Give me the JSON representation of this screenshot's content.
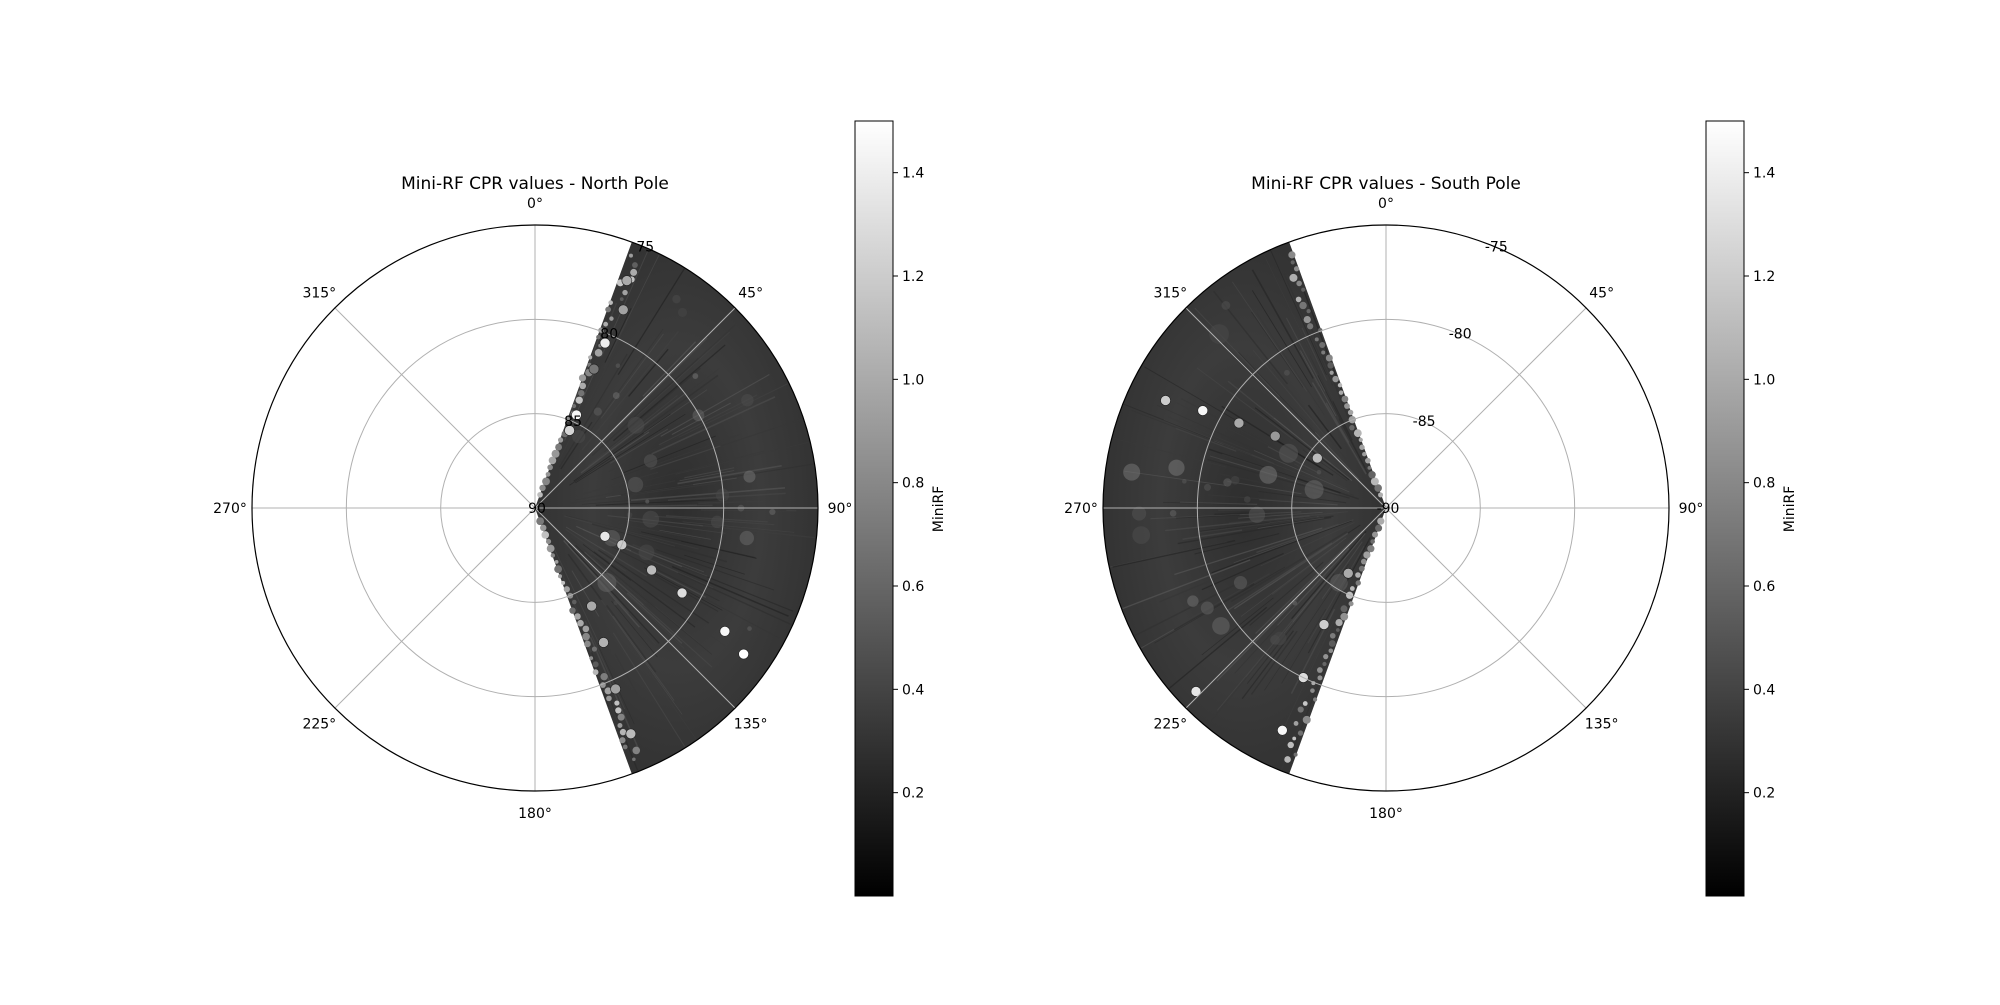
{
  "chart_data": [
    {
      "type": "polar-scatter",
      "title": "Mini-RF CPR values - North Pole",
      "theta_tick_labels": [
        "0°",
        "45°",
        "90°",
        "135°",
        "180°",
        "225°",
        "270°",
        "315°"
      ],
      "radial_tick_labels": [
        "75",
        "80",
        "85",
        "90"
      ],
      "r_range": [
        90,
        75
      ],
      "theta_zero": "top",
      "theta_direction": "clockwise",
      "coverage_longitude_deg": [
        20,
        160
      ],
      "colormap": "gray",
      "colorbar": {
        "label": "MiniRF",
        "range": [
          0.0,
          1.5
        ],
        "tick_labels": [
          "0.2",
          "0.4",
          "0.6",
          "0.8",
          "1.0",
          "1.2",
          "1.4"
        ]
      },
      "grid": true,
      "highlights": [
        {
          "lon": 22,
          "lat": 77.0,
          "cpr": 1.0
        },
        {
          "lon": 24,
          "lat": 78.5,
          "cpr": 0.95
        },
        {
          "lon": 23,
          "lat": 80.5,
          "cpr": 1.4
        },
        {
          "lon": 23,
          "lat": 82.0,
          "cpr": 0.7
        },
        {
          "lon": 24,
          "lat": 84.6,
          "cpr": 1.45
        },
        {
          "lon": 24,
          "lat": 85.5,
          "cpr": 1.25
        },
        {
          "lon": 112,
          "lat": 86.0,
          "cpr": 1.35
        },
        {
          "lon": 113,
          "lat": 85.0,
          "cpr": 1.2
        },
        {
          "lon": 118,
          "lat": 83.0,
          "cpr": 1.1
        },
        {
          "lon": 120,
          "lat": 81.0,
          "cpr": 1.3
        },
        {
          "lon": 123,
          "lat": 78.0,
          "cpr": 1.45
        },
        {
          "lon": 125,
          "lat": 76.5,
          "cpr": 1.5
        },
        {
          "lon": 150,
          "lat": 84.0,
          "cpr": 1.0
        },
        {
          "lon": 153,
          "lat": 82.0,
          "cpr": 1.05
        },
        {
          "lon": 156,
          "lat": 79.5,
          "cpr": 0.95
        },
        {
          "lon": 157,
          "lat": 77.0,
          "cpr": 1.1
        }
      ]
    },
    {
      "type": "polar-scatter",
      "title": "Mini-RF CPR values - South Pole",
      "theta_tick_labels": [
        "0°",
        "45°",
        "90°",
        "135°",
        "180°",
        "225°",
        "270°",
        "315°"
      ],
      "radial_tick_labels": [
        "-75",
        "-80",
        "-85",
        "-90"
      ],
      "r_range": [
        -90,
        -75
      ],
      "theta_zero": "top",
      "theta_direction": "clockwise",
      "coverage_longitude_deg": [
        200,
        340
      ],
      "colormap": "gray",
      "colorbar": {
        "label": "MiniRF",
        "range": [
          0.0,
          1.5
        ],
        "tick_labels": [
          "0.2",
          "0.4",
          "0.6",
          "0.8",
          "1.0",
          "1.2",
          "1.4"
        ]
      },
      "grid": true,
      "highlights": [
        {
          "lon": 296,
          "lat": -77.0,
          "cpr": 1.2
        },
        {
          "lon": 298,
          "lat": -79.0,
          "cpr": 1.45
        },
        {
          "lon": 300,
          "lat": -81.0,
          "cpr": 1.0
        },
        {
          "lon": 303,
          "lat": -83.0,
          "cpr": 0.9
        },
        {
          "lon": 306,
          "lat": -85.5,
          "cpr": 1.1
        },
        {
          "lon": 210,
          "lat": -86.0,
          "cpr": 1.0
        },
        {
          "lon": 208,
          "lat": -83.0,
          "cpr": 1.2
        },
        {
          "lon": 206,
          "lat": -80.0,
          "cpr": 1.3
        },
        {
          "lon": 205,
          "lat": -77.0,
          "cpr": 1.45
        },
        {
          "lon": 226,
          "lat": -76.0,
          "cpr": 1.35
        }
      ]
    }
  ]
}
